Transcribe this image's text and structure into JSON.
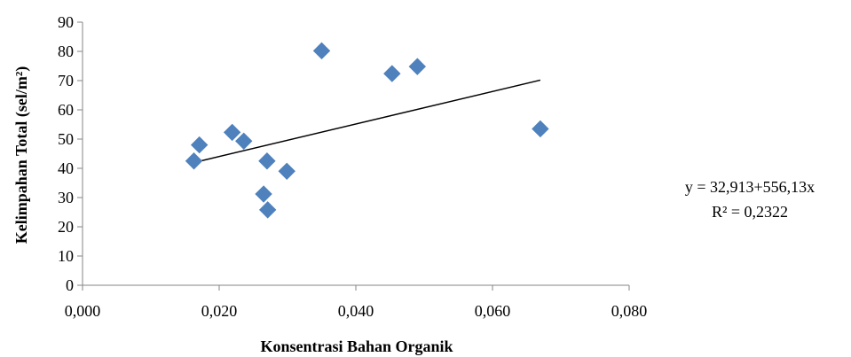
{
  "chart_data": {
    "type": "scatter",
    "xlabel": "Konsentrasi Bahan Organik",
    "ylabel": "Kelimpahan Total (sel/m²)",
    "xlim": [
      0,
      0.08
    ],
    "ylim": [
      0,
      90
    ],
    "x_ticks": [
      0,
      0.02,
      0.04,
      0.06,
      0.08
    ],
    "x_tick_labels": [
      "0,000",
      "0,020",
      "0,040",
      "0,060",
      "0,080"
    ],
    "y_ticks": [
      0,
      10,
      20,
      30,
      40,
      50,
      60,
      70,
      80,
      90
    ],
    "y_tick_labels": [
      "0",
      "10",
      "20",
      "30",
      "40",
      "50",
      "60",
      "70",
      "80",
      "90"
    ],
    "grid": false,
    "marker": "diamond",
    "marker_color": "#4F81BD",
    "trendline_color": "#000000",
    "series": [
      {
        "x": [
          0.0163,
          0.0171,
          0.0219,
          0.0236,
          0.0265,
          0.027,
          0.0271,
          0.0299,
          0.035,
          0.0453,
          0.049,
          0.067
        ],
        "y": [
          42.5,
          48.0,
          52.3,
          49.3,
          31.2,
          42.5,
          25.8,
          39.0,
          80.2,
          72.4,
          74.8,
          53.5
        ]
      }
    ],
    "trendline": {
      "intercept": 32.913,
      "slope": 556.13,
      "x_range": [
        0.0163,
        0.067
      ],
      "equation": "y = 32,913+556,13x",
      "r_squared": "R² = 0,2322"
    }
  }
}
